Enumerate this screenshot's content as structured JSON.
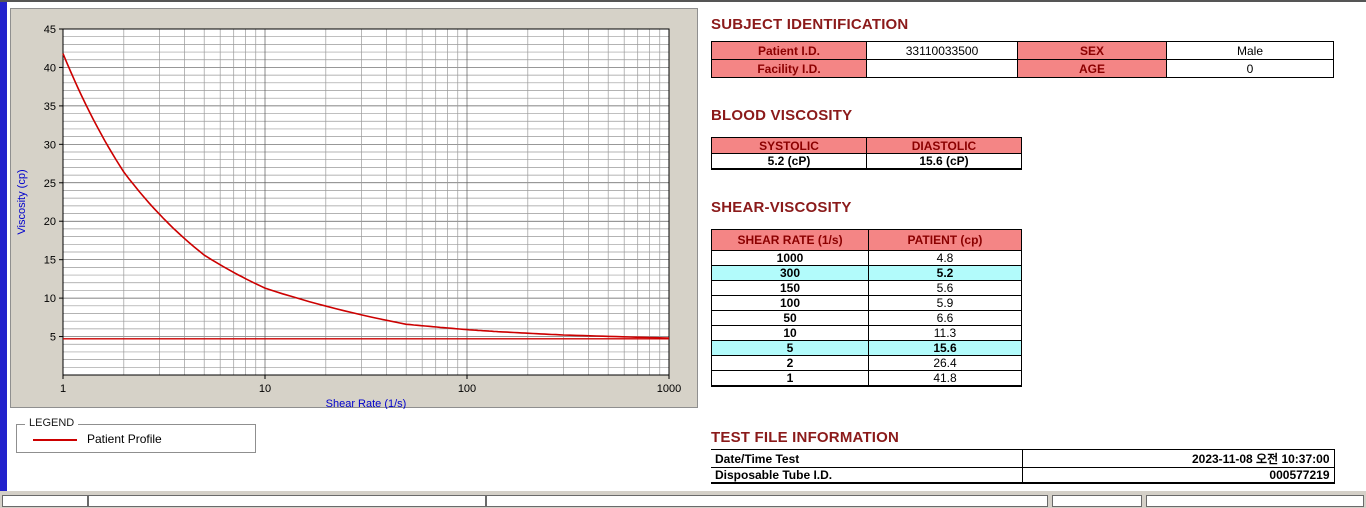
{
  "colors": {
    "pink": "#F48585",
    "cyan": "#B2FBFB",
    "maroon": "#8B1A1A",
    "label-red": "#8B0000",
    "series-red": "#CC0000",
    "axis-blue": "#0000CC",
    "panel-gray": "#D6D2C8",
    "chrome-gray": "#D4D0C8",
    "edge-blue": "#2222CC"
  },
  "chart_data": {
    "type": "line",
    "xscale": "log",
    "xlabel": "Shear Rate (1/s)",
    "ylabel": "Viscosity (cp)",
    "xlim": [
      1,
      1000
    ],
    "ylim": [
      0,
      45
    ],
    "xticks": [
      1,
      10,
      100,
      1000
    ],
    "yticks": [
      5,
      10,
      15,
      20,
      25,
      30,
      35,
      40,
      45
    ],
    "grid": "on",
    "legend_position": "below-left",
    "x": [
      1,
      2,
      5,
      10,
      50,
      100,
      150,
      300,
      1000
    ],
    "series": [
      {
        "name": "Patient Profile",
        "values": [
          41.8,
          26.4,
          15.6,
          11.3,
          6.6,
          5.9,
          5.6,
          5.2,
          4.8
        ]
      }
    ],
    "reference_line": 4.7
  },
  "legend": {
    "title": "LEGEND",
    "series": "Patient Profile"
  },
  "subject": {
    "title": "SUBJECT IDENTIFICATION",
    "rows": [
      {
        "label1": "Patient I.D.",
        "value1": "33110033500",
        "label2": "SEX",
        "value2": "Male"
      },
      {
        "label1": "Facility I.D.",
        "value1": "",
        "label2": "AGE",
        "value2": "0"
      }
    ]
  },
  "blood_viscosity": {
    "title": "BLOOD VISCOSITY",
    "headers": [
      "SYSTOLIC",
      "DIASTOLIC"
    ],
    "values": [
      "5.2 (cP)",
      "15.6 (cP)"
    ]
  },
  "shear_viscosity": {
    "title": "SHEAR-VISCOSITY",
    "headers": [
      "SHEAR RATE (1/s)",
      "PATIENT (cp)"
    ],
    "rows": [
      {
        "rate": "1000",
        "value": "4.8",
        "highlight": false
      },
      {
        "rate": "300",
        "value": "5.2",
        "highlight": true
      },
      {
        "rate": "150",
        "value": "5.6",
        "highlight": false
      },
      {
        "rate": "100",
        "value": "5.9",
        "highlight": false
      },
      {
        "rate": "50",
        "value": "6.6",
        "highlight": false
      },
      {
        "rate": "10",
        "value": "11.3",
        "highlight": false
      },
      {
        "rate": "5",
        "value": "15.6",
        "highlight": true
      },
      {
        "rate": "2",
        "value": "26.4",
        "highlight": false
      },
      {
        "rate": "1",
        "value": "41.8",
        "highlight": false
      }
    ]
  },
  "test_file": {
    "title": "TEST FILE INFORMATION",
    "rows": [
      {
        "label": "Date/Time Test",
        "value": "2023-11-08  오전 10:37:00"
      },
      {
        "label": "Disposable Tube I.D.",
        "value": "000577219"
      }
    ]
  }
}
